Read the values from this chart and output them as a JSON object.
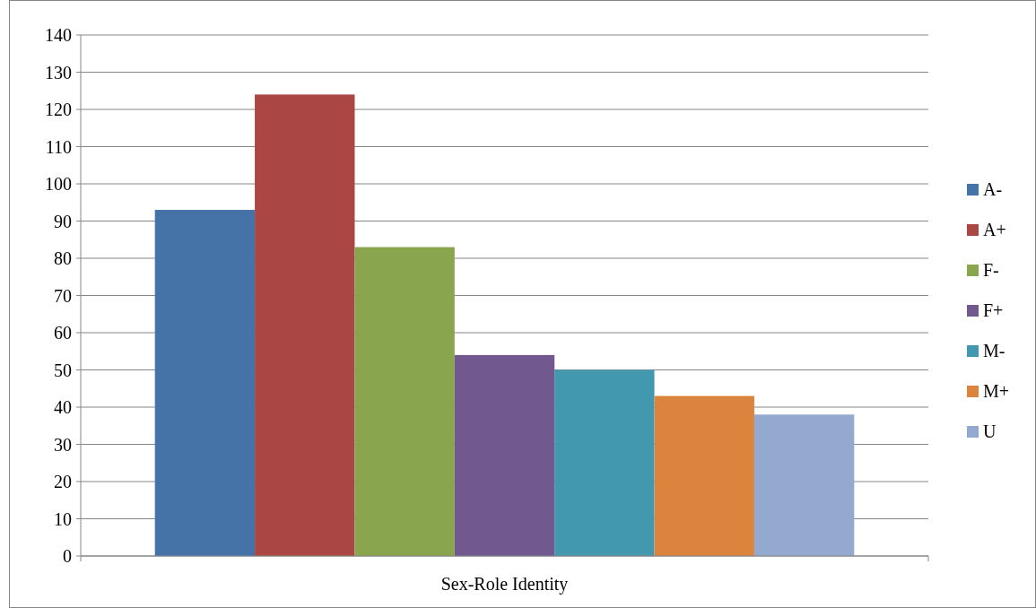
{
  "chart_data": {
    "type": "bar",
    "categories": [
      "Sex-Role Identity"
    ],
    "series": [
      {
        "name": "A-",
        "color": "#4572a7",
        "values": [
          93
        ]
      },
      {
        "name": "A+",
        "color": "#aa4643",
        "values": [
          124
        ]
      },
      {
        "name": "F-",
        "color": "#89a54e",
        "values": [
          83
        ]
      },
      {
        "name": "F+",
        "color": "#71588f",
        "values": [
          54
        ]
      },
      {
        "name": "M-",
        "color": "#4198af",
        "values": [
          50
        ]
      },
      {
        "name": "M+",
        "color": "#db843d",
        "values": [
          43
        ]
      },
      {
        "name": "U",
        "color": "#93a9cf",
        "values": [
          38
        ]
      }
    ],
    "ylim": [
      0,
      140
    ],
    "yticks": [
      0,
      10,
      20,
      30,
      40,
      50,
      60,
      70,
      80,
      90,
      100,
      110,
      120,
      130,
      140
    ],
    "grid": "y",
    "legend": "right"
  }
}
